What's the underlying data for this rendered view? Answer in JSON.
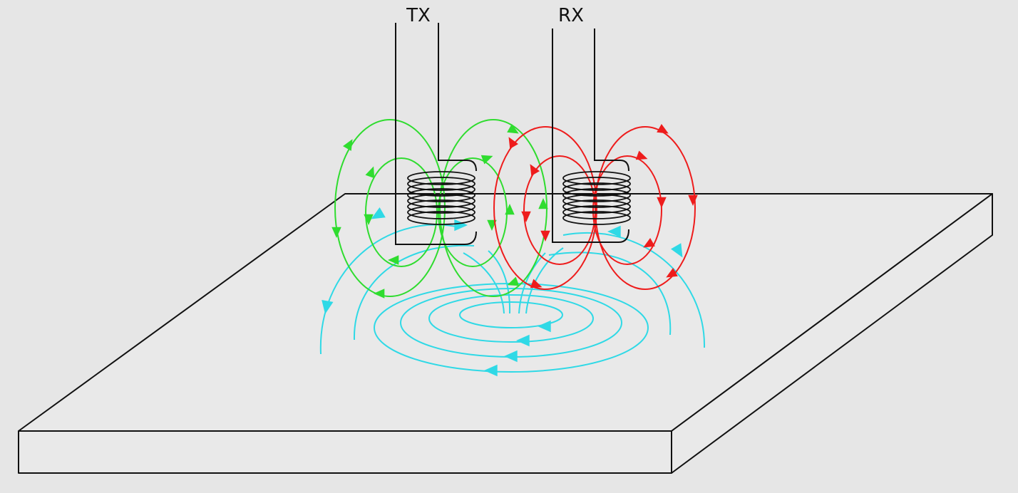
{
  "labels": {
    "tx": "TX",
    "rx": "RX"
  },
  "colors": {
    "background": "#e6e6e6",
    "plate_fill": "#e9e9e9",
    "outline": "#111111",
    "tx_field": "#2fdc2f",
    "rx_field": "#ee1c1c",
    "eddy_current": "#2fd9e6"
  }
}
